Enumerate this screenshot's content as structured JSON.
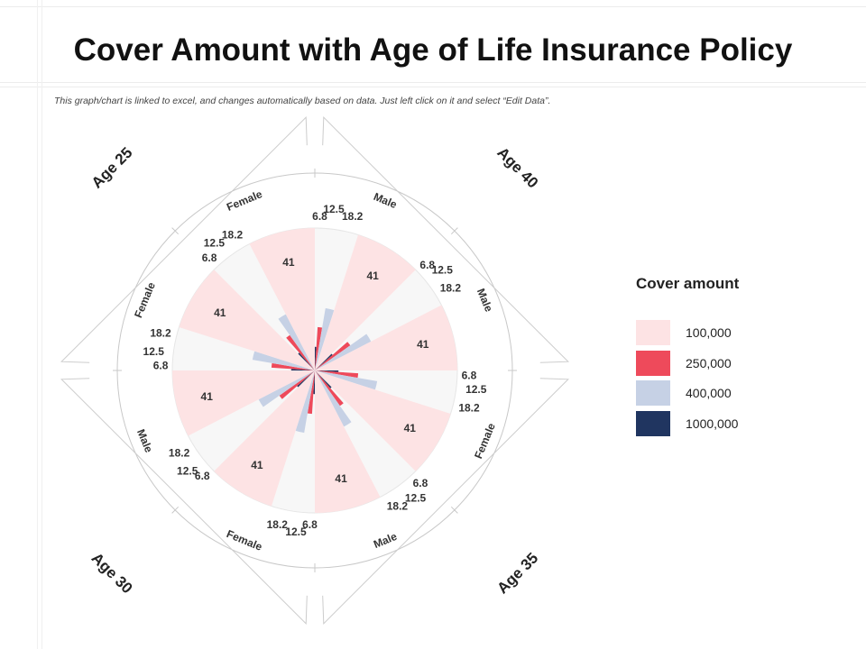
{
  "title": "Cover Amount with Age of Life Insurance Policy",
  "subtitle": "This graph/chart is linked to excel, and changes automatically based on data. Just left click on it and select “Edit Data”.",
  "legend": {
    "title": "Cover amount",
    "items": [
      {
        "label": "100,000",
        "color": "#fde3e4"
      },
      {
        "label": "250,000",
        "color": "#ee4a5b"
      },
      {
        "label": "400,000",
        "color": "#c6d1e5"
      },
      {
        "label": "1000,000",
        "color": "#203560"
      }
    ]
  },
  "chart_data": {
    "type": "radar",
    "groups": [
      "Age 25",
      "Age 40",
      "Age 35",
      "Age 30"
    ],
    "segments": [
      "Male",
      "Male",
      "Female",
      "Male",
      "Female",
      "Male",
      "Female",
      "Female"
    ],
    "categories": [
      "100,000",
      "250,000",
      "400,000",
      "1000,000"
    ],
    "values": [
      41,
      12.5,
      18.2,
      6.8
    ],
    "max": 41
  }
}
